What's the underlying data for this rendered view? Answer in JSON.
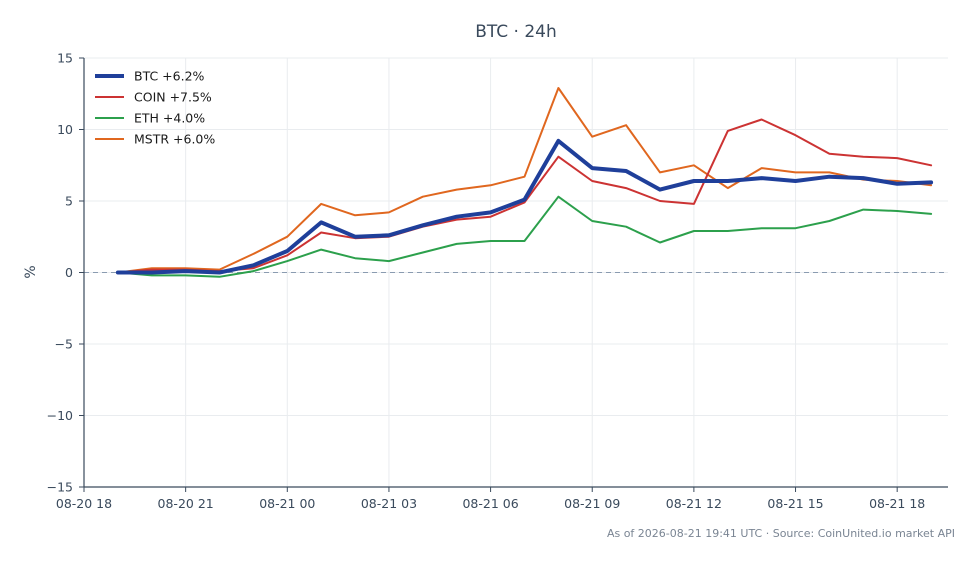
{
  "chart_data": {
    "type": "line",
    "title": "BTC · 24h",
    "ylabel": "%",
    "ylim": [
      -15,
      15
    ],
    "yticks": [
      -15,
      -10,
      -5,
      0,
      5,
      10,
      15
    ],
    "ytick_labels": [
      "−15",
      "−10",
      "−5",
      "0",
      "5",
      "10",
      "15"
    ],
    "xlim": [
      0,
      25.5
    ],
    "xticks": [
      0,
      3,
      6,
      9,
      12,
      15,
      18,
      21,
      24
    ],
    "xtick_labels": [
      "08-20 18",
      "08-20 21",
      "08-21 00",
      "08-21 03",
      "08-21 06",
      "08-21 09",
      "08-21 12",
      "08-21 15",
      "08-21 18"
    ],
    "grid": true,
    "zero_line": true,
    "legend_position": "top-left",
    "x": [
      1,
      2,
      3,
      4,
      5,
      6,
      7,
      8,
      9,
      10,
      11,
      12,
      13,
      14,
      15,
      16,
      17,
      18,
      19,
      20,
      21,
      22,
      23,
      24,
      25
    ],
    "series": [
      {
        "name": "BTC +6.2%",
        "color": "#1f3f9a",
        "width": 4,
        "values": [
          0,
          0,
          0.1,
          0,
          0.5,
          1.5,
          3.5,
          2.5,
          2.6,
          3.3,
          3.9,
          4.2,
          5.1,
          9.2,
          7.3,
          7.1,
          5.8,
          6.4,
          6.4,
          6.6,
          6.4,
          6.7,
          6.6,
          6.2,
          6.3
        ]
      },
      {
        "name": "COIN +7.5%",
        "color": "#cc3333",
        "width": 2,
        "values": [
          0,
          0.2,
          0.2,
          0.1,
          0.3,
          1.2,
          2.8,
          2.4,
          2.5,
          3.2,
          3.7,
          3.9,
          4.9,
          8.1,
          6.4,
          5.9,
          5.0,
          4.8,
          9.9,
          10.7,
          9.6,
          8.3,
          8.1,
          8.0,
          7.5
        ]
      },
      {
        "name": "ETH +4.0%",
        "color": "#2ca04c",
        "width": 2,
        "values": [
          0,
          -0.2,
          -0.2,
          -0.3,
          0.1,
          0.8,
          1.6,
          1.0,
          0.8,
          1.4,
          2.0,
          2.2,
          2.2,
          5.3,
          3.6,
          3.2,
          2.1,
          2.9,
          2.9,
          3.1,
          3.1,
          3.6,
          4.4,
          4.3,
          4.1
        ]
      },
      {
        "name": "MSTR +6.0%",
        "color": "#e0671f",
        "width": 2,
        "values": [
          0,
          0.3,
          0.3,
          0.2,
          1.3,
          2.5,
          4.8,
          4.0,
          4.2,
          5.3,
          5.8,
          6.1,
          6.7,
          12.9,
          9.5,
          10.3,
          7.0,
          7.5,
          5.9,
          7.3,
          7.0,
          7.0,
          6.5,
          6.4,
          6.1
        ]
      }
    ],
    "source_note": "As of 2026-08-21 19:41 UTC · Source: CoinUnited.io market API"
  }
}
